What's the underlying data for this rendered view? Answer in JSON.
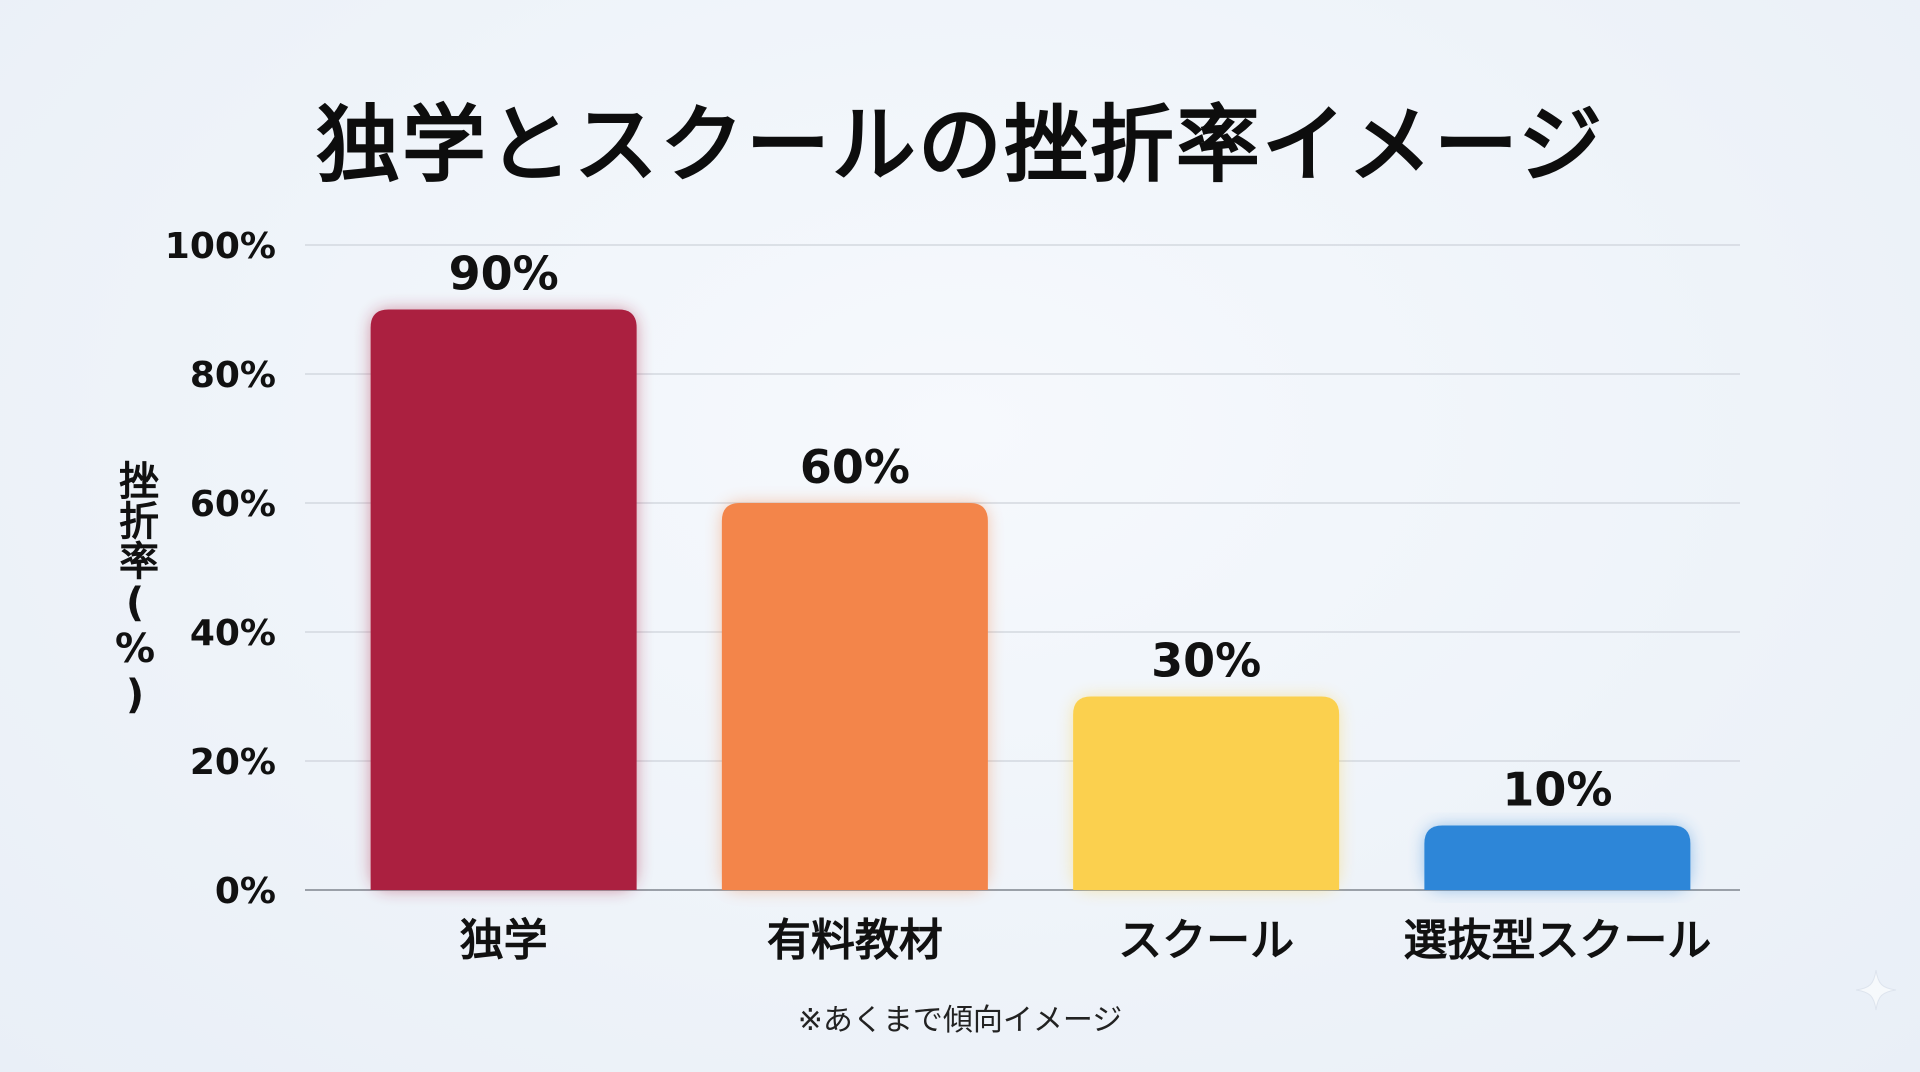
{
  "chart_data": {
    "type": "bar",
    "title": "独学とスクールの挫折率イメージ",
    "ylabel": "挫折率(%)",
    "xlabel": "",
    "categories": [
      "独学",
      "有料教材",
      "スクール",
      "選抜型スクール"
    ],
    "values": [
      90,
      60,
      30,
      10
    ],
    "data_labels": [
      "90%",
      "60%",
      "30%",
      "10%"
    ],
    "colors": [
      "#ab2040",
      "#f3854a",
      "#fbd04e",
      "#2d86d8"
    ],
    "ylim": [
      0,
      100
    ],
    "yticks": [
      0,
      20,
      40,
      60,
      80,
      100
    ],
    "ytick_labels": [
      "0%",
      "20%",
      "40%",
      "60%",
      "80%",
      "100%"
    ],
    "grid": true,
    "footnote": "※あくまで傾向イメージ"
  },
  "decor": {
    "sparkle_icon": "sparkle-icon"
  }
}
